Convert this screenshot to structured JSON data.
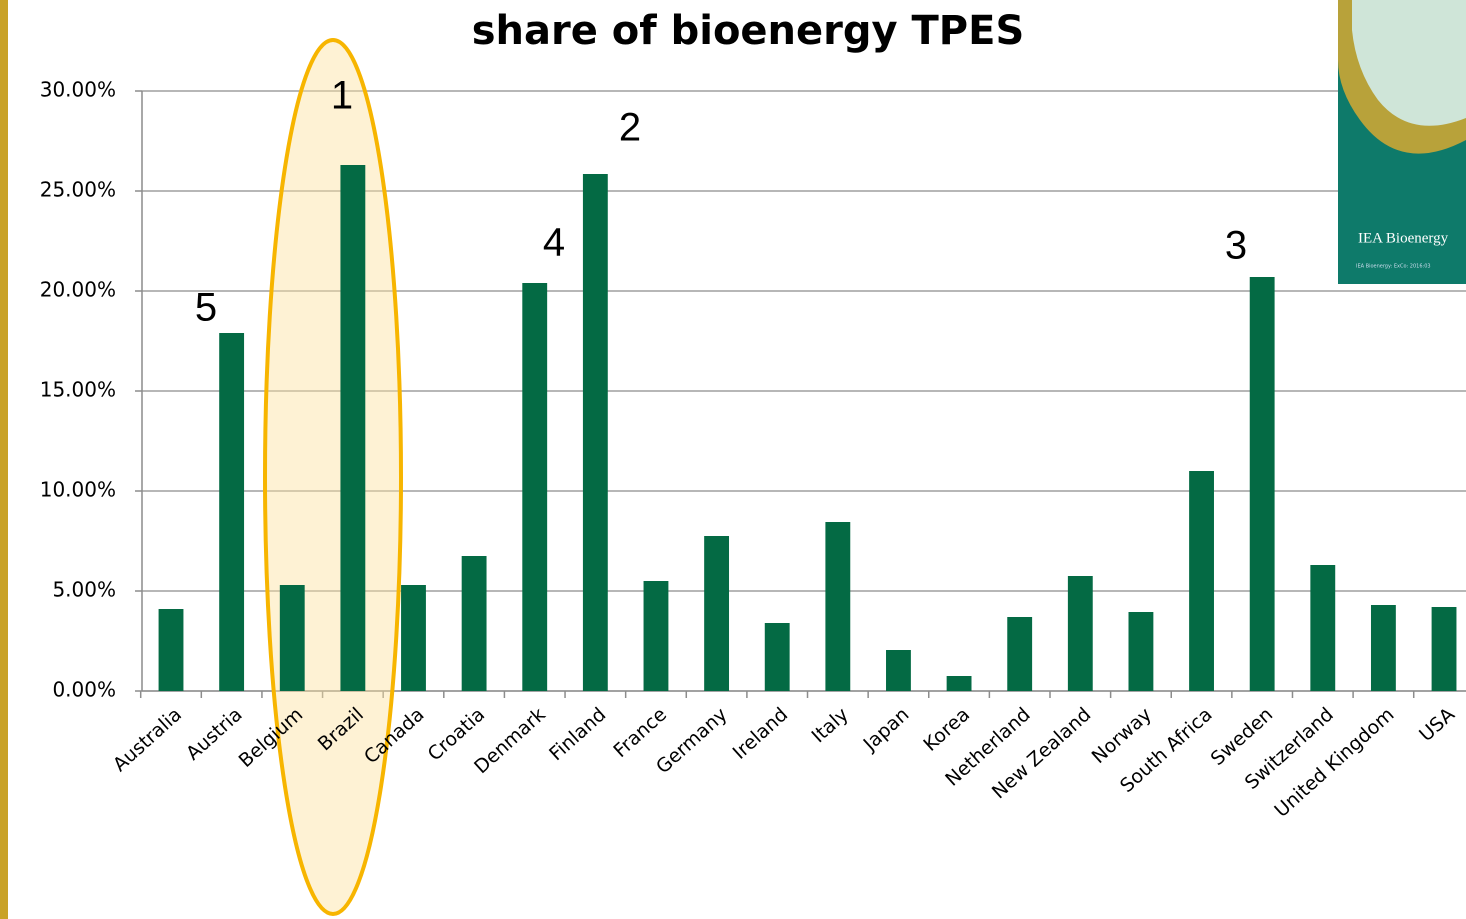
{
  "chart_data": {
    "type": "bar",
    "title": "share of bioenergy TPES",
    "categories": [
      "Australia",
      "Austria",
      "Belgium",
      "Brazil",
      "Canada",
      "Croatia",
      "Denmark",
      "Finland",
      "France",
      "Germany",
      "Ireland",
      "Italy",
      "Japan",
      "Korea",
      "Netherland",
      "New Zealand",
      "Norway",
      "South Africa",
      "Sweden",
      "Switzerland",
      "United Kingdom",
      "USA"
    ],
    "values": [
      4.1,
      17.9,
      5.3,
      26.3,
      5.3,
      6.75,
      20.4,
      25.85,
      5.5,
      7.75,
      3.4,
      8.45,
      2.05,
      0.75,
      3.7,
      5.75,
      3.95,
      11.0,
      20.7,
      6.3,
      4.3,
      4.2
    ],
    "color": "#046a44",
    "ylim": [
      0,
      30
    ],
    "yticks": [
      {
        "value": 0,
        "label": "0.00%"
      },
      {
        "value": 5,
        "label": "5.00%"
      },
      {
        "value": 10,
        "label": "10.00%"
      },
      {
        "value": 15,
        "label": "15.00%"
      },
      {
        "value": 20,
        "label": "20.00%"
      },
      {
        "value": 25,
        "label": "25.00%"
      },
      {
        "value": 30,
        "label": "30.00%"
      }
    ],
    "grid": true,
    "annotations": [
      {
        "text": "1"
      },
      {
        "text": "2"
      },
      {
        "text": "3"
      },
      {
        "text": "4"
      },
      {
        "text": "5"
      }
    ]
  },
  "cover": {
    "title": "IEA Bioenergy",
    "subtitle": "IEA Bioenergy: ExCo: 2016:03"
  }
}
